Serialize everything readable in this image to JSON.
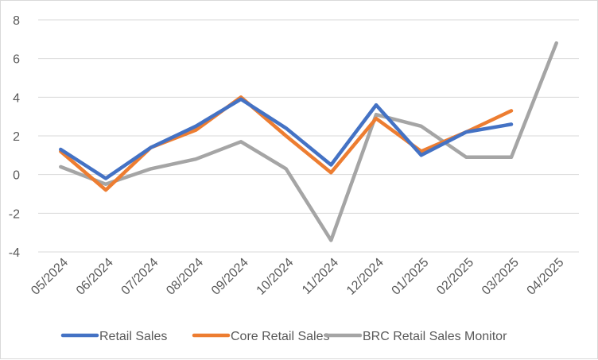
{
  "chart_data": {
    "type": "line",
    "title": "",
    "xlabel": "",
    "ylabel": "",
    "ylim": [
      -4,
      8
    ],
    "yticks": [
      "8",
      "6",
      "4",
      "2",
      "0",
      "-2",
      "-4"
    ],
    "ytick_values": [
      8,
      6,
      4,
      2,
      0,
      -2,
      -4
    ],
    "gridlines": true,
    "legend_position": "bottom",
    "categories": [
      "05/2024",
      "06/2024",
      "07/2024",
      "08/2024",
      "09/2024",
      "10/2024",
      "11/2024",
      "12/2024",
      "01/2025",
      "02/2025",
      "03/2025",
      "04/2025"
    ],
    "series": [
      {
        "name": "Retail Sales",
        "color": "#4472c4",
        "values": [
          1.3,
          -0.2,
          1.4,
          2.5,
          3.9,
          2.4,
          0.5,
          3.6,
          1.0,
          2.2,
          2.6,
          null
        ]
      },
      {
        "name": "Core Retail Sales",
        "color": "#ed7d31",
        "values": [
          1.2,
          -0.8,
          1.4,
          2.3,
          4.0,
          2.0,
          0.1,
          2.9,
          1.2,
          2.2,
          3.3,
          null
        ]
      },
      {
        "name": "BRC Retail Sales Monitor",
        "color": "#a5a5a5",
        "values": [
          0.4,
          -0.5,
          0.3,
          0.8,
          1.7,
          0.3,
          -3.4,
          3.1,
          2.5,
          0.9,
          0.9,
          6.8
        ]
      }
    ]
  }
}
